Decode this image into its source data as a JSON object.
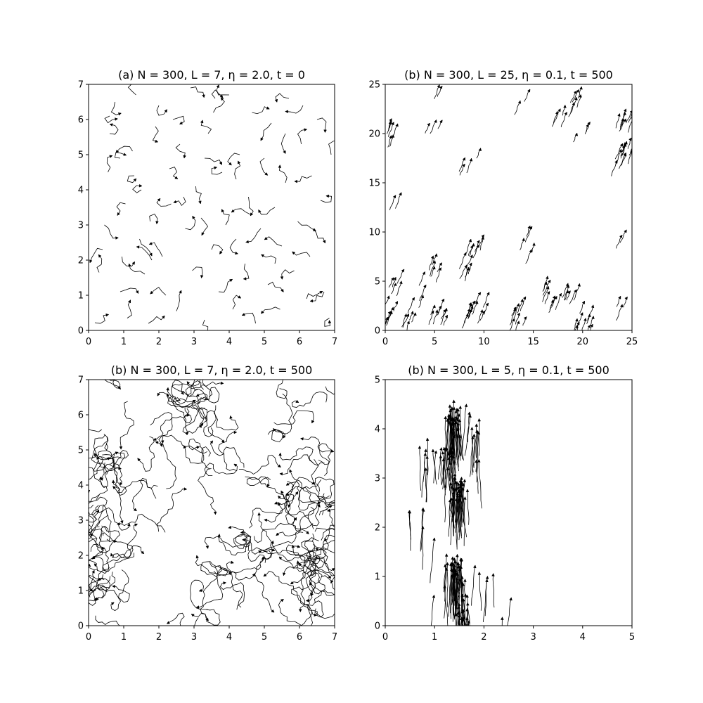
{
  "colors": {
    "background": "#ffffff",
    "ink": "#000000"
  },
  "chart_data": [
    {
      "type": "scatter",
      "marker": "arrow",
      "title": "(a) N = 300, L = 7, η = 2.0, t = 0",
      "xlim": [
        0,
        7
      ],
      "ylim": [
        0,
        7
      ],
      "xticks": [
        "0",
        "1",
        "2",
        "3",
        "4",
        "5",
        "6",
        "7"
      ],
      "yticks": [
        "0",
        "1",
        "2",
        "3",
        "4",
        "5",
        "6",
        "7"
      ],
      "grid": false,
      "pattern": "random short trails, uniformly scattered",
      "trail_points": 4,
      "points": [
        [
          0.18,
          0.22
        ],
        [
          0.3,
          1.65
        ],
        [
          0.4,
          2.3
        ],
        [
          0.45,
          3.0
        ],
        [
          0.55,
          4.5
        ],
        [
          0.6,
          5.6
        ],
        [
          0.75,
          6.5
        ],
        [
          0.9,
          1.1
        ],
        [
          0.95,
          2.1
        ],
        [
          1.05,
          3.6
        ],
        [
          1.1,
          0.35
        ],
        [
          1.25,
          5.1
        ],
        [
          1.35,
          6.7
        ],
        [
          1.45,
          2.6
        ],
        [
          1.5,
          4.0
        ],
        [
          1.6,
          1.6
        ],
        [
          1.7,
          0.2
        ],
        [
          1.75,
          3.1
        ],
        [
          1.9,
          5.8
        ],
        [
          2.0,
          6.4
        ],
        [
          2.1,
          2.1
        ],
        [
          2.2,
          1.0
        ],
        [
          2.3,
          4.6
        ],
        [
          2.35,
          3.6
        ],
        [
          2.5,
          0.55
        ],
        [
          2.6,
          5.3
        ],
        [
          2.75,
          2.9
        ],
        [
          2.9,
          6.9
        ],
        [
          2.95,
          1.7
        ],
        [
          3.05,
          4.1
        ],
        [
          3.2,
          3.2
        ],
        [
          3.3,
          0.3
        ],
        [
          3.4,
          5.6
        ],
        [
          3.5,
          2.3
        ],
        [
          3.55,
          6.2
        ],
        [
          3.7,
          1.1
        ],
        [
          3.8,
          4.5
        ],
        [
          3.9,
          3.0
        ],
        [
          4.0,
          6.7
        ],
        [
          4.1,
          0.6
        ],
        [
          4.2,
          2.6
        ],
        [
          4.3,
          5.0
        ],
        [
          4.45,
          1.9
        ],
        [
          4.55,
          3.8
        ],
        [
          4.65,
          6.2
        ],
        [
          4.75,
          0.2
        ],
        [
          4.9,
          2.9
        ],
        [
          5.0,
          4.9
        ],
        [
          5.1,
          1.3
        ],
        [
          5.2,
          5.9
        ],
        [
          5.3,
          3.5
        ],
        [
          5.45,
          0.6
        ],
        [
          5.5,
          2.4
        ],
        [
          5.6,
          4.2
        ],
        [
          5.7,
          6.6
        ],
        [
          5.85,
          1.7
        ],
        [
          5.95,
          3.1
        ],
        [
          6.05,
          5.3
        ],
        [
          6.2,
          0.9
        ],
        [
          6.3,
          2.1
        ],
        [
          6.35,
          4.4
        ],
        [
          6.5,
          6.0
        ],
        [
          6.6,
          3.7
        ],
        [
          6.7,
          1.1
        ],
        [
          6.85,
          0.35
        ],
        [
          6.9,
          5.0
        ],
        [
          1.8,
          2.0
        ],
        [
          2.7,
          3.8
        ],
        [
          3.6,
          6.6
        ],
        [
          4.6,
          3.3
        ],
        [
          5.3,
          1.9
        ],
        [
          6.4,
          2.9
        ],
        [
          0.6,
          6.1
        ],
        [
          1.3,
          4.4
        ],
        [
          2.4,
          6.0
        ],
        [
          3.3,
          4.9
        ],
        [
          4.2,
          4.3
        ],
        [
          5.6,
          5.6
        ],
        [
          6.1,
          6.4
        ],
        [
          0.9,
          4.9
        ]
      ]
    },
    {
      "type": "scatter",
      "marker": "arrow",
      "title": "(b) N = 300, L = 25, η = 0.1, t = 500",
      "xlim": [
        0,
        25
      ],
      "ylim": [
        0,
        25
      ],
      "xticks": [
        "0",
        "5",
        "10",
        "15",
        "20",
        "25"
      ],
      "yticks": [
        "0",
        "5",
        "10",
        "15",
        "20",
        "25"
      ],
      "grid": false,
      "heading_deg": 70,
      "pattern": "aligned flocks moving in a common direction",
      "trail_length": 1.4,
      "clusters": [
        [
          0.4,
          1.5,
          8
        ],
        [
          0.3,
          20.5,
          14
        ],
        [
          1.2,
          4.8,
          6
        ],
        [
          1.0,
          13.5,
          2
        ],
        [
          2.5,
          2.0,
          6
        ],
        [
          4.0,
          5.0,
          3
        ],
        [
          5.2,
          7.0,
          6
        ],
        [
          5.8,
          2.5,
          8
        ],
        [
          5.2,
          21.3,
          3
        ],
        [
          5.8,
          24.5,
          2
        ],
        [
          8.3,
          17.2,
          4
        ],
        [
          8.6,
          7.5,
          6
        ],
        [
          9.3,
          9.0,
          7
        ],
        [
          9.0,
          2.5,
          10
        ],
        [
          10.0,
          3.0,
          3
        ],
        [
          13.5,
          2.5,
          6
        ],
        [
          13.6,
          1.0,
          3
        ],
        [
          14.6,
          24.4,
          3
        ],
        [
          14.8,
          9.6,
          5
        ],
        [
          16.3,
          4.5,
          5
        ],
        [
          17.6,
          4.2,
          6
        ],
        [
          18.3,
          22.8,
          5
        ],
        [
          18.8,
          3.8,
          4
        ],
        [
          19.5,
          24.2,
          5
        ],
        [
          19.8,
          1.2,
          6
        ],
        [
          21.1,
          1.5,
          5
        ],
        [
          20.3,
          20.6,
          3
        ],
        [
          24.0,
          10.5,
          2
        ],
        [
          24.4,
          18.5,
          12
        ],
        [
          24.6,
          22.0,
          8
        ],
        [
          24.4,
          3.0,
          3
        ]
      ]
    },
    {
      "type": "scatter",
      "marker": "arrow",
      "title": "(b) N = 300, L = 7, η = 2.0, t = 500",
      "xlim": [
        0,
        7
      ],
      "ylim": [
        0,
        7
      ],
      "xticks": [
        "0",
        "1",
        "2",
        "3",
        "4",
        "5",
        "6",
        "7"
      ],
      "yticks": [
        "0",
        "1",
        "2",
        "3",
        "4",
        "5",
        "6",
        "7"
      ],
      "grid": false,
      "pattern": "long tangled random-walk trails, dense near the left and right edges",
      "trail_points": 16,
      "clusters": [
        [
          0.25,
          0.6,
          6
        ],
        [
          0.4,
          1.6,
          10
        ],
        [
          0.3,
          2.5,
          8
        ],
        [
          0.3,
          3.4,
          8
        ],
        [
          0.5,
          4.5,
          8
        ],
        [
          0.4,
          5.5,
          5
        ],
        [
          0.9,
          6.7,
          3
        ],
        [
          1.6,
          5.7,
          2
        ],
        [
          2.0,
          4.0,
          3
        ],
        [
          2.6,
          6.3,
          4
        ],
        [
          3.3,
          6.5,
          8
        ],
        [
          3.4,
          5.9,
          6
        ],
        [
          3.5,
          4.6,
          5
        ],
        [
          3.6,
          1.5,
          6
        ],
        [
          3.4,
          0.4,
          3
        ],
        [
          4.6,
          2.5,
          7
        ],
        [
          4.9,
          1.9,
          4
        ],
        [
          4.4,
          4.2,
          4
        ],
        [
          5.2,
          5.6,
          2
        ],
        [
          5.3,
          4.4,
          2
        ],
        [
          6.3,
          0.5,
          8
        ],
        [
          6.4,
          1.5,
          12
        ],
        [
          6.5,
          2.5,
          12
        ],
        [
          6.6,
          3.5,
          12
        ],
        [
          6.5,
          4.5,
          6
        ],
        [
          6.7,
          6.7,
          3
        ],
        [
          2.3,
          2.9,
          2
        ],
        [
          1.0,
          2.0,
          2
        ],
        [
          5.5,
          6.6,
          2
        ],
        [
          4.1,
          0.5,
          2
        ]
      ]
    },
    {
      "type": "scatter",
      "marker": "arrow",
      "title": "(b) N = 300, L = 5, η = 0.1, t = 500",
      "xlim": [
        0,
        5
      ],
      "ylim": [
        0,
        5
      ],
      "xticks": [
        "0",
        "1",
        "2",
        "3",
        "4",
        "5"
      ],
      "yticks": [
        "0",
        "1",
        "2",
        "3",
        "4",
        "5"
      ],
      "grid": false,
      "heading_deg": 90,
      "pattern": "vertical band of nearly parallel upward trails",
      "trail_length": 0.8,
      "clusters": [
        [
          1.4,
          4.3,
          40
        ],
        [
          1.5,
          2.8,
          40
        ],
        [
          1.4,
          1.2,
          45
        ],
        [
          1.55,
          0.3,
          25
        ],
        [
          1.3,
          3.5,
          20
        ],
        [
          0.9,
          3.6,
          8
        ],
        [
          1.8,
          4.0,
          10
        ],
        [
          0.4,
          2.5,
          2
        ],
        [
          0.7,
          2.5,
          2
        ],
        [
          0.85,
          2.1,
          2
        ],
        [
          2.0,
          3.1,
          2
        ],
        [
          1.95,
          1.1,
          3
        ],
        [
          2.1,
          1.0,
          2
        ],
        [
          2.35,
          0.4,
          2
        ],
        [
          1.05,
          0.75,
          2
        ]
      ]
    }
  ]
}
